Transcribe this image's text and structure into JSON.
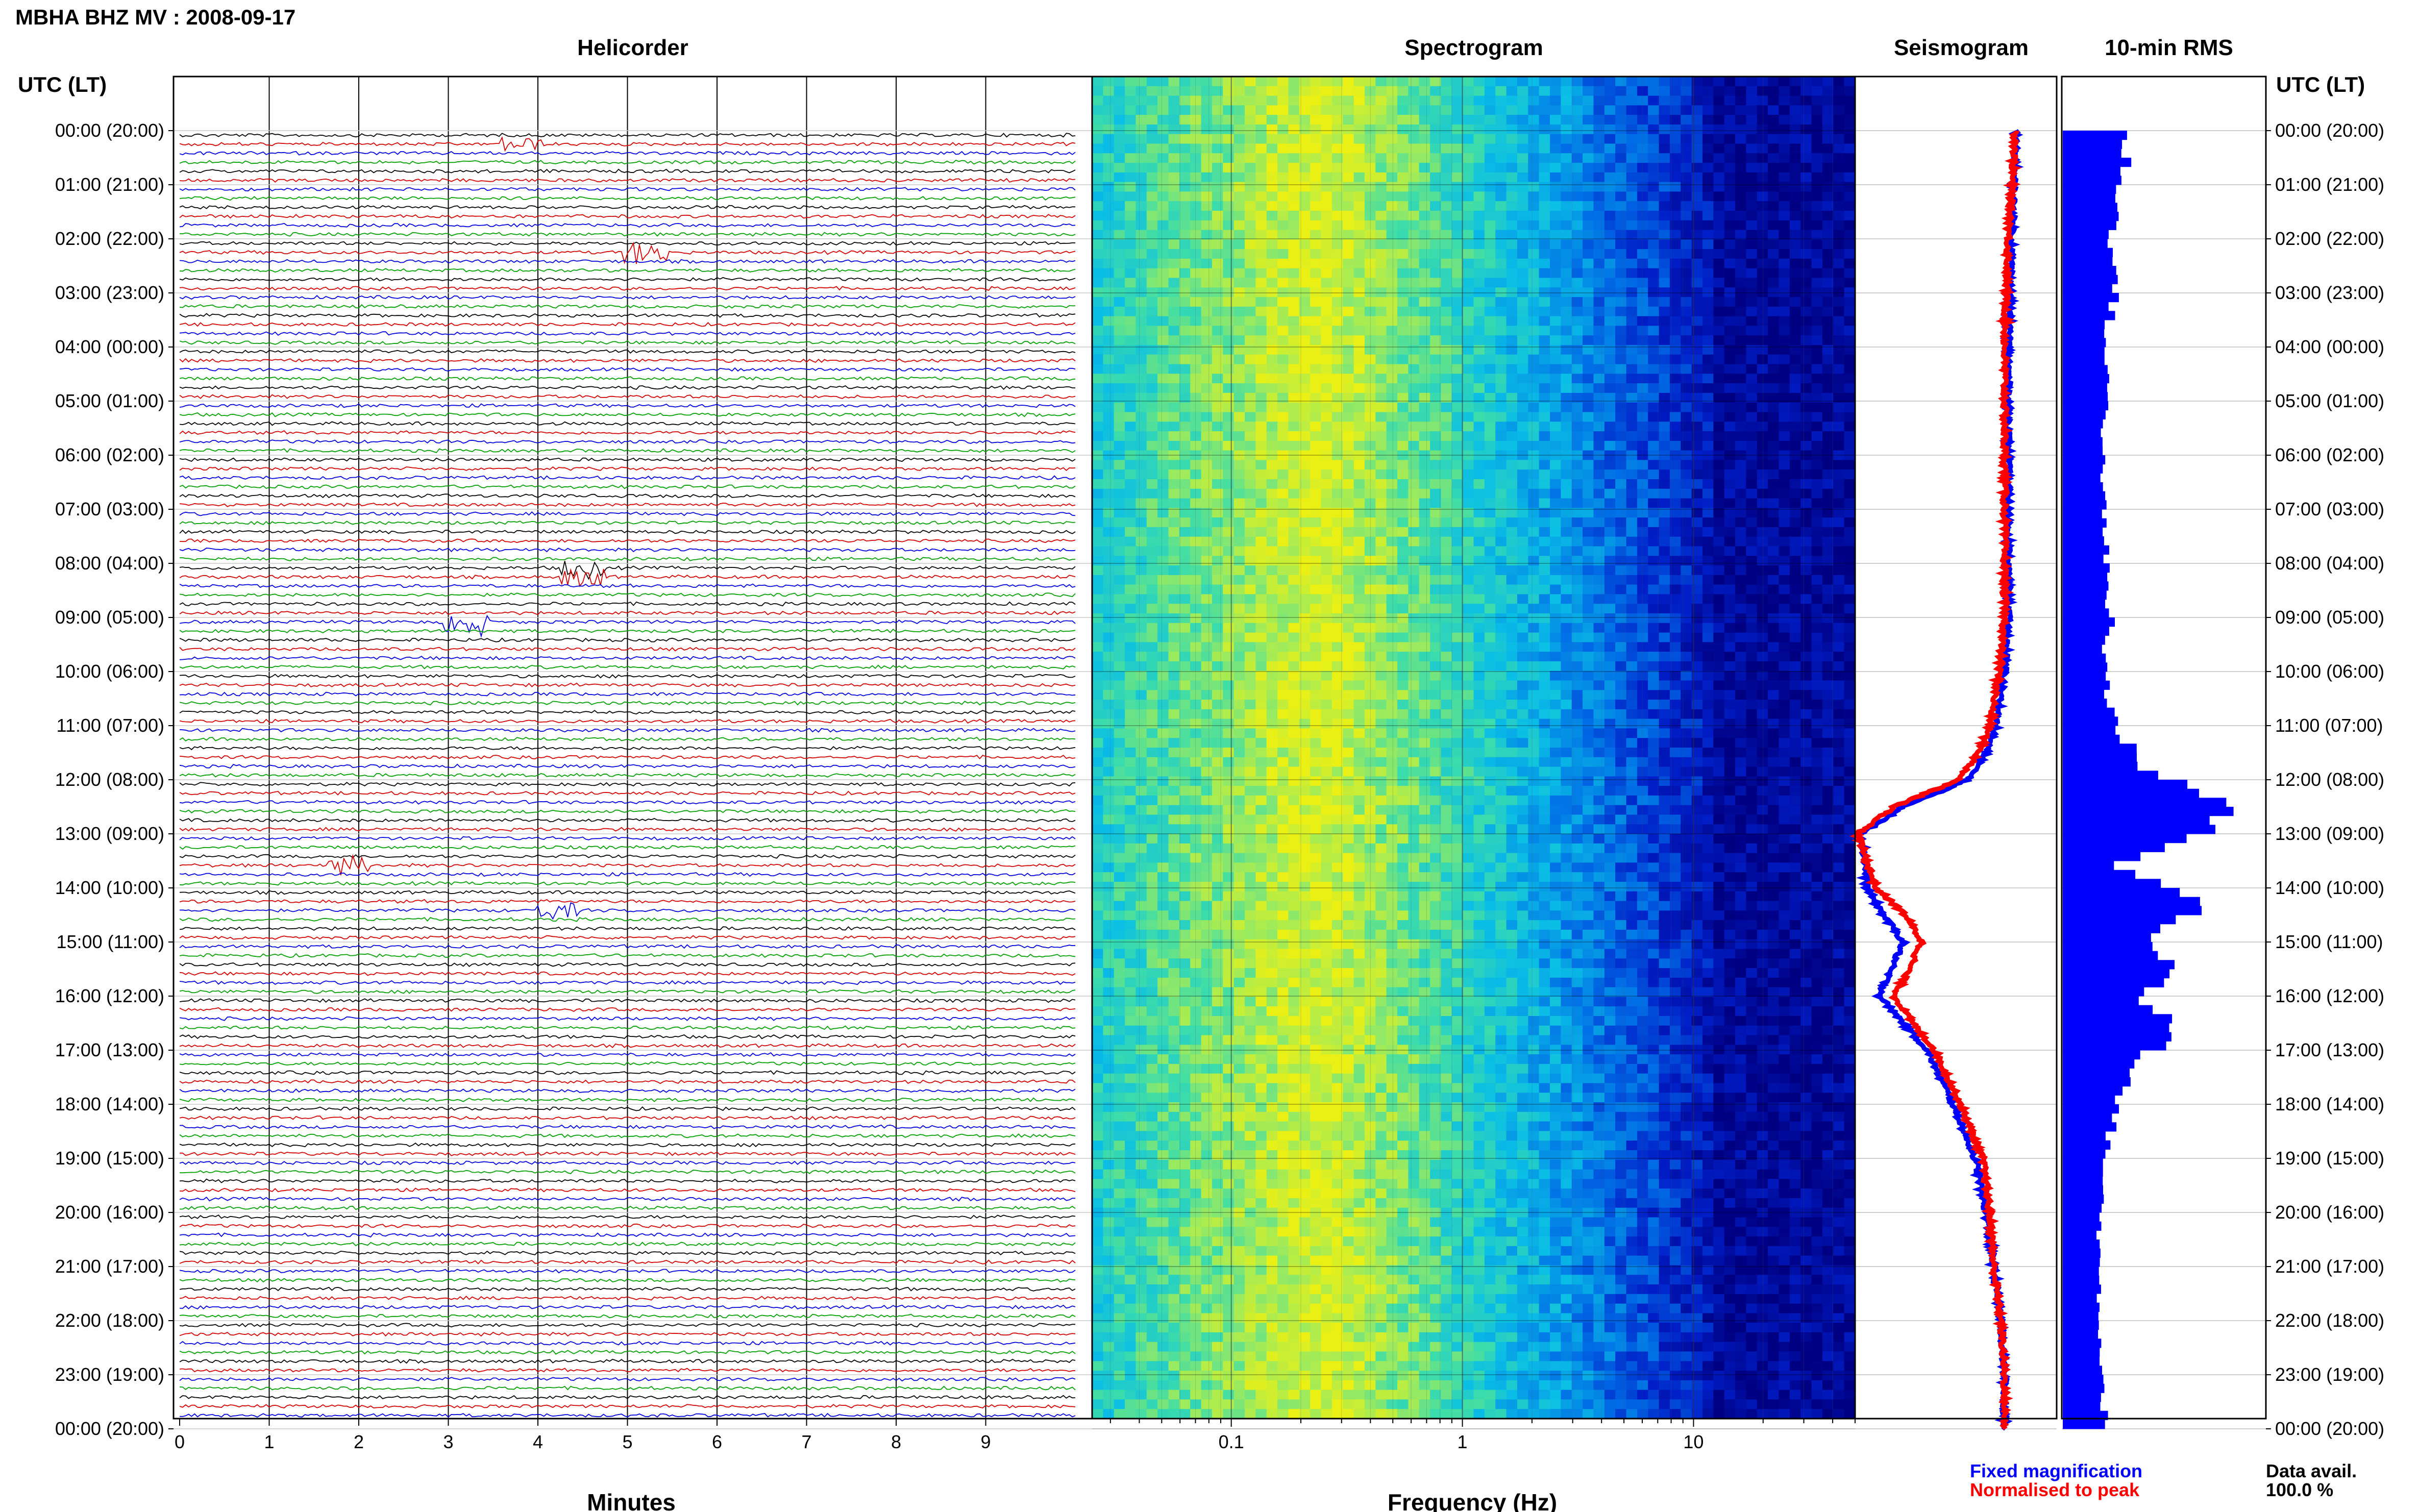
{
  "title": "MBHA BHZ MV : 2008-09-17",
  "panels": {
    "helicorder": "Helicorder",
    "spectrogram": "Spectrogram",
    "seismogram": "Seismogram",
    "rms": "10-min RMS"
  },
  "axis_titles": {
    "left_corner": "UTC (LT)",
    "right_corner": "UTC (LT)",
    "helicorder_x": "Minutes",
    "spectrogram_x": "Frequency (Hz)"
  },
  "hour_labels": [
    "00:00 (20:00)",
    "01:00 (21:00)",
    "02:00 (22:00)",
    "03:00 (23:00)",
    "04:00 (00:00)",
    "05:00 (01:00)",
    "06:00 (02:00)",
    "07:00 (03:00)",
    "08:00 (04:00)",
    "09:00 (05:00)",
    "10:00 (06:00)",
    "11:00 (07:00)",
    "12:00 (08:00)",
    "13:00 (09:00)",
    "14:00 (10:00)",
    "15:00 (11:00)",
    "16:00 (12:00)",
    "17:00 (13:00)",
    "18:00 (14:00)",
    "19:00 (15:00)",
    "20:00 (16:00)",
    "21:00 (17:00)",
    "22:00 (18:00)",
    "23:00 (19:00)",
    "00:00 (20:00)"
  ],
  "minute_ticks": [
    "0",
    "1",
    "2",
    "3",
    "4",
    "5",
    "6",
    "7",
    "8",
    "9"
  ],
  "freq_ticks": [
    "0.1",
    "1",
    "10"
  ],
  "legend": {
    "fixed": "Fixed magnification",
    "normalised": "Normalised to peak",
    "data_avail_label": "Data avail.",
    "data_avail_value": "100.0 %"
  },
  "colors": {
    "trace_black": "#000000",
    "trace_red": "#d40000",
    "trace_blue": "#0000e0",
    "trace_green": "#00a000",
    "fixed": "#0000ff",
    "normalised": "#ff0000",
    "rms_bar": "#0000ff",
    "spectrogram_low": "#000090",
    "spectrogram_high": "#e8f000"
  },
  "chart_data": [
    {
      "type": "line",
      "title": "Helicorder",
      "xlabel": "Minutes",
      "xlim": [
        0,
        10
      ],
      "rows_per_hour": 6,
      "hours": 24,
      "row_color_cycle": [
        "black",
        "red",
        "blue",
        "green"
      ],
      "events": [
        {
          "hour": 0.1,
          "minute": 3.8,
          "amplitude": 1.6
        },
        {
          "hour": 2.2,
          "minute": 5.2,
          "amplitude": 2.4
        },
        {
          "hour": 8.1,
          "minute": 4.5,
          "amplitude": 2.0
        },
        {
          "hour": 9.0,
          "minute": 3.2,
          "amplitude": 2.6
        },
        {
          "hour": 13.5,
          "minute": 1.9,
          "amplitude": 1.8
        },
        {
          "hour": 14.3,
          "minute": 4.2,
          "amplitude": 1.8
        }
      ]
    },
    {
      "type": "heatmap",
      "title": "Spectrogram",
      "xlabel": "Frequency (Hz)",
      "xscale": "log",
      "xlim": [
        0.025,
        50
      ],
      "peak_band_hz": [
        0.2,
        0.3
      ]
    },
    {
      "type": "line",
      "title": "Seismogram",
      "hours": [
        0,
        1,
        2,
        3,
        4,
        5,
        6,
        7,
        8,
        9,
        10,
        11,
        11.5,
        12,
        12.5,
        13,
        13.5,
        14,
        14.5,
        15,
        15.5,
        16,
        16.5,
        17,
        18,
        19,
        20,
        21,
        22,
        23,
        24
      ],
      "series": [
        {
          "name": "Fixed magnification",
          "values": [
            0.86,
            0.85,
            0.84,
            0.83,
            0.82,
            0.82,
            0.82,
            0.82,
            0.82,
            0.82,
            0.8,
            0.75,
            0.7,
            0.6,
            0.25,
            0.02,
            0.04,
            0.05,
            0.14,
            0.25,
            0.18,
            0.12,
            0.25,
            0.38,
            0.52,
            0.64,
            0.7,
            0.74,
            0.78,
            0.8,
            0.8
          ]
        },
        {
          "name": "Normalised to peak",
          "values": [
            0.86,
            0.84,
            0.82,
            0.81,
            0.8,
            0.8,
            0.8,
            0.8,
            0.8,
            0.8,
            0.77,
            0.72,
            0.66,
            0.55,
            0.2,
            0.0,
            0.05,
            0.1,
            0.26,
            0.35,
            0.28,
            0.2,
            0.3,
            0.42,
            0.56,
            0.68,
            0.72,
            0.74,
            0.78,
            0.8,
            0.8
          ]
        }
      ]
    },
    {
      "type": "bar",
      "title": "10-min RMS",
      "interval_minutes": 10,
      "hours": [
        0,
        0.5,
        1,
        1.5,
        2,
        2.5,
        3,
        3.5,
        4,
        4.5,
        5,
        5.5,
        6,
        6.5,
        7,
        7.5,
        8,
        8.5,
        9,
        9.5,
        10,
        10.5,
        11,
        11.25,
        11.5,
        11.75,
        12,
        12.25,
        12.5,
        12.75,
        13,
        13.25,
        13.5,
        13.75,
        14,
        14.25,
        14.5,
        14.75,
        15,
        15.25,
        15.5,
        15.75,
        16,
        16.25,
        16.5,
        16.75,
        17,
        17.5,
        18,
        19,
        20,
        21,
        22,
        23,
        23.5
      ],
      "values": [
        0.32,
        0.34,
        0.3,
        0.28,
        0.26,
        0.27,
        0.28,
        0.24,
        0.22,
        0.23,
        0.24,
        0.22,
        0.21,
        0.22,
        0.21,
        0.22,
        0.24,
        0.22,
        0.26,
        0.22,
        0.23,
        0.24,
        0.3,
        0.35,
        0.37,
        0.42,
        0.62,
        0.82,
        0.92,
        0.78,
        0.66,
        0.52,
        0.28,
        0.45,
        0.6,
        0.78,
        0.58,
        0.52,
        0.45,
        0.55,
        0.62,
        0.5,
        0.4,
        0.55,
        0.62,
        0.58,
        0.45,
        0.35,
        0.28,
        0.22,
        0.2,
        0.19,
        0.2,
        0.21,
        0.22
      ]
    }
  ]
}
